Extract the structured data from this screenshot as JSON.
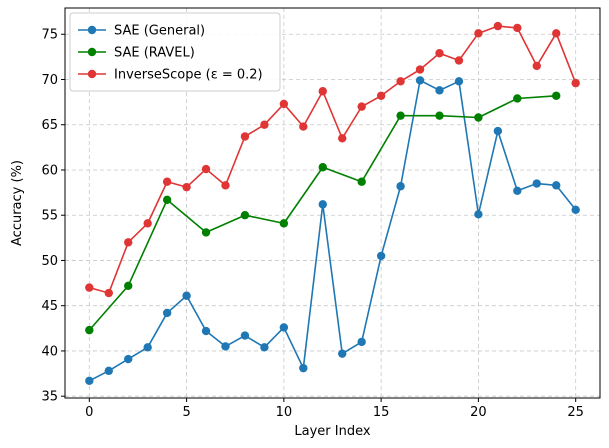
{
  "chart_data": {
    "type": "line",
    "xlabel": "Layer Index",
    "ylabel": "Accuracy (%)",
    "xlim": [
      -1.25,
      26.25
    ],
    "ylim": [
      34.8,
      77.9
    ],
    "xticks": [
      0,
      5,
      10,
      15,
      20,
      25
    ],
    "yticks": [
      35,
      40,
      45,
      50,
      55,
      60,
      65,
      70,
      75
    ],
    "grid": true,
    "legend_position": "top-left",
    "series": [
      {
        "name": "SAE (General)",
        "color": "#1f77b4",
        "x": [
          0,
          1,
          2,
          3,
          4,
          5,
          6,
          7,
          8,
          9,
          10,
          11,
          12,
          13,
          14,
          15,
          16,
          17,
          18,
          19,
          20,
          21,
          22,
          23,
          24,
          25
        ],
        "y": [
          36.7,
          37.8,
          39.1,
          40.4,
          44.2,
          46.1,
          42.2,
          40.5,
          41.7,
          40.4,
          42.6,
          38.1,
          56.2,
          39.7,
          41.0,
          50.5,
          58.2,
          69.9,
          68.8,
          69.8,
          55.1,
          64.3,
          57.7,
          58.5,
          58.3,
          55.6
        ]
      },
      {
        "name": "SAE (RAVEL)",
        "color": "#008000",
        "x": [
          0,
          2,
          4,
          6,
          8,
          10,
          12,
          14,
          16,
          18,
          20,
          22,
          24
        ],
        "y": [
          42.3,
          47.2,
          56.7,
          53.1,
          55.0,
          54.1,
          60.3,
          58.7,
          66.0,
          66.0,
          65.8,
          67.9,
          68.2
        ]
      },
      {
        "name": "InverseScope (ε = 0.2)",
        "color": "#e03535",
        "x": [
          0,
          1,
          2,
          3,
          4,
          5,
          6,
          7,
          8,
          9,
          10,
          11,
          12,
          13,
          14,
          15,
          16,
          17,
          18,
          19,
          20,
          21,
          22,
          23,
          24,
          25
        ],
        "y": [
          47.0,
          46.4,
          52.0,
          54.1,
          58.7,
          58.1,
          60.1,
          58.3,
          63.7,
          65.0,
          67.3,
          64.8,
          68.7,
          63.5,
          67.0,
          68.2,
          69.8,
          71.1,
          72.9,
          72.1,
          75.1,
          75.9,
          75.7,
          71.5,
          75.1,
          69.6
        ]
      }
    ]
  }
}
